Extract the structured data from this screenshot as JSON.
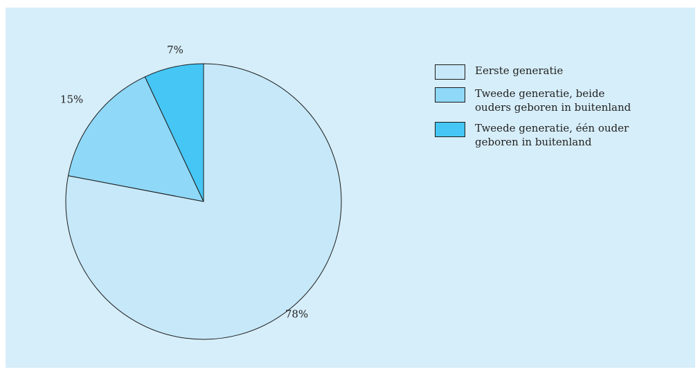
{
  "chart_data": {
    "type": "pie",
    "categories": [
      "Eerste generatie",
      "Tweede generatie, beide\nouders geboren in buitenland",
      "Tweede generatie, één ouder\ngeboren in buitenland"
    ],
    "values": [
      78,
      15,
      7
    ],
    "value_labels": [
      "78%",
      "15%",
      "7%"
    ],
    "colors": [
      "#c6e8f8",
      "#8fd8f7",
      "#45c6f4"
    ],
    "slice_order": "counter-clockwise from 12 o'clock: third, second, first",
    "legend_position": "top-right"
  }
}
